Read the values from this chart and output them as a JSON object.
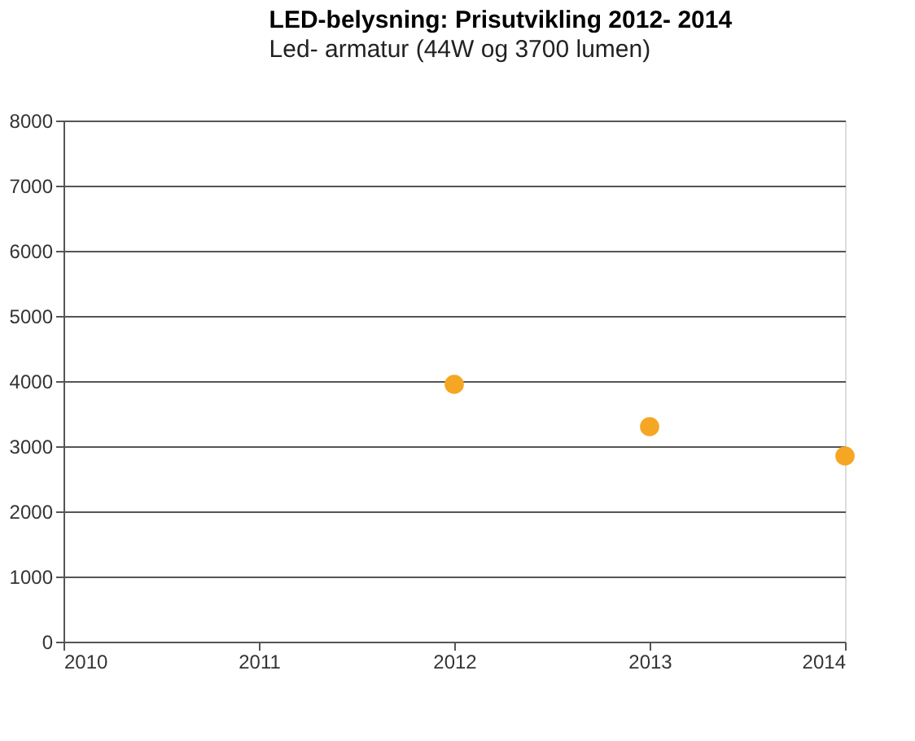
{
  "chart_data": {
    "type": "scatter",
    "title": "LED-belysning: Prisutvikling 2012- 2014",
    "subtitle": "Led- armatur (44W og 3700 lumen)",
    "x": [
      2012,
      2013,
      2014
    ],
    "series": [
      {
        "color": "#f5a623",
        "values": [
          3950,
          3300,
          2850
        ]
      }
    ],
    "xlim": [
      2010,
      2014
    ],
    "xticks": [
      2010,
      2011,
      2012,
      2013,
      2014
    ],
    "ylim": [
      0,
      8000
    ],
    "yticks": [
      0,
      1000,
      2000,
      3000,
      4000,
      5000,
      6000,
      7000,
      8000
    ],
    "grid": "y",
    "marker": "circle",
    "legend": false
  }
}
